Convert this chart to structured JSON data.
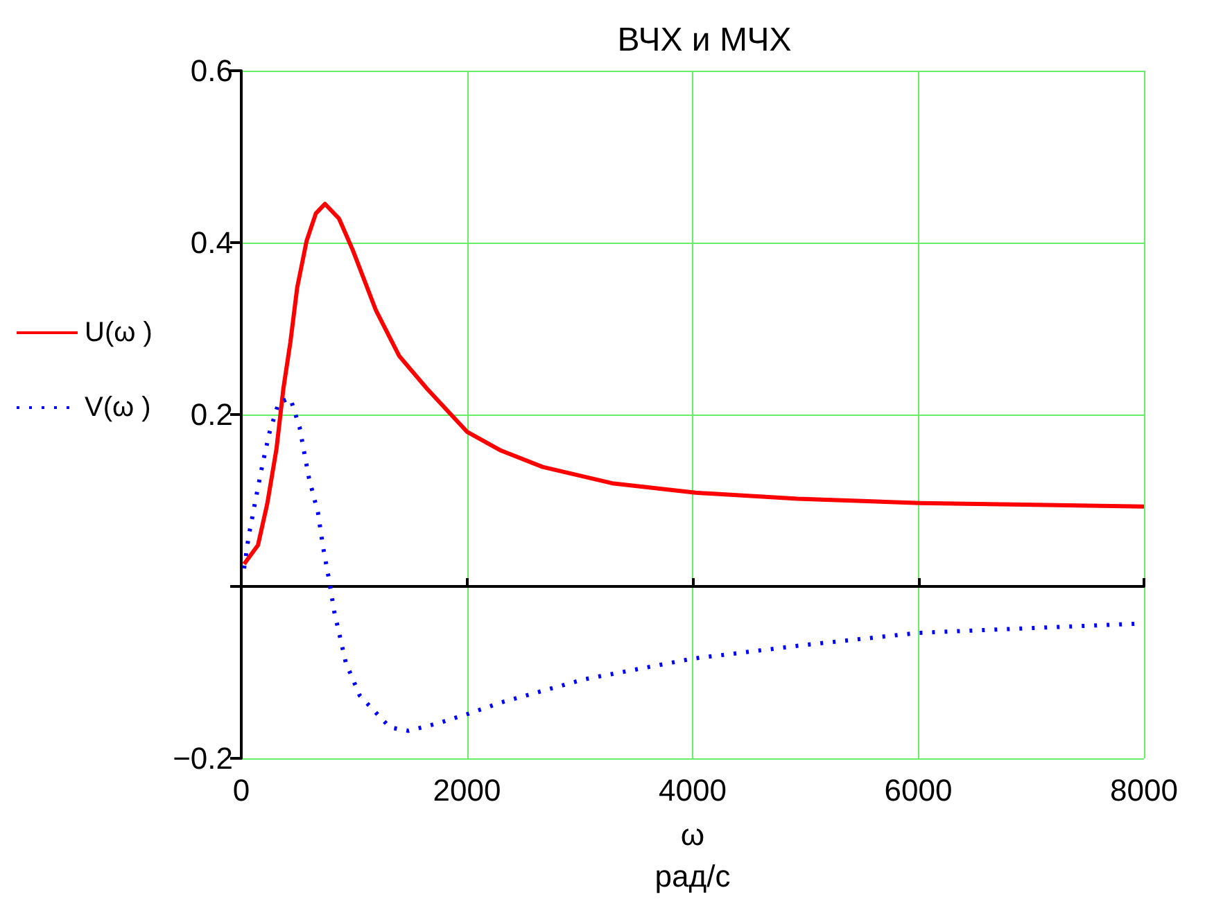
{
  "chart_data": {
    "type": "line",
    "title": "ВЧХ и МЧХ",
    "xlabel": "ω\nрад/с",
    "xlim": [
      0,
      8000
    ],
    "xticks": [
      0,
      2000,
      4000,
      6000,
      8000
    ],
    "ylim": [
      -0.2,
      0.6
    ],
    "yticks": [
      {
        "value": -0.2,
        "label": "−0.2"
      },
      {
        "value": 0,
        "label": null
      },
      0.2,
      0.4,
      0.6
    ],
    "grid": true,
    "legend": "left",
    "marker": "none",
    "series": [
      {
        "name": "U(ω )",
        "color": "#ff0000",
        "line_style": "solid",
        "x": [
          25,
          148,
          230,
          312,
          373,
          435,
          496,
          579,
          661,
          742,
          866,
          989,
          1194,
          1400,
          1646,
          2000,
          2302,
          2671,
          3287,
          4025,
          4928,
          6016,
          8000
        ],
        "values": [
          0.026,
          0.048,
          0.096,
          0.16,
          0.23,
          0.284,
          0.348,
          0.402,
          0.434,
          0.445,
          0.428,
          0.391,
          0.321,
          0.268,
          0.23,
          0.18,
          0.158,
          0.139,
          0.12,
          0.109,
          0.102,
          0.097,
          0.093
        ]
      },
      {
        "name": "V(ω )",
        "color": "#0000ff",
        "line_style": "dotted",
        "x": [
          25,
          65,
          127,
          188,
          250,
          332,
          435,
          517,
          600,
          681,
          722,
          776,
          825,
          927,
          1050,
          1317,
          1481,
          1748,
          2015,
          2302,
          3040,
          4000,
          5000,
          6000,
          8000
        ],
        "values": [
          0.021,
          0.058,
          0.101,
          0.142,
          0.179,
          0.214,
          0.219,
          0.185,
          0.126,
          0.085,
          0.048,
          0.009,
          -0.03,
          -0.089,
          -0.127,
          -0.164,
          -0.168,
          -0.159,
          -0.148,
          -0.135,
          -0.108,
          -0.084,
          -0.068,
          -0.054,
          -0.043
        ]
      }
    ]
  }
}
